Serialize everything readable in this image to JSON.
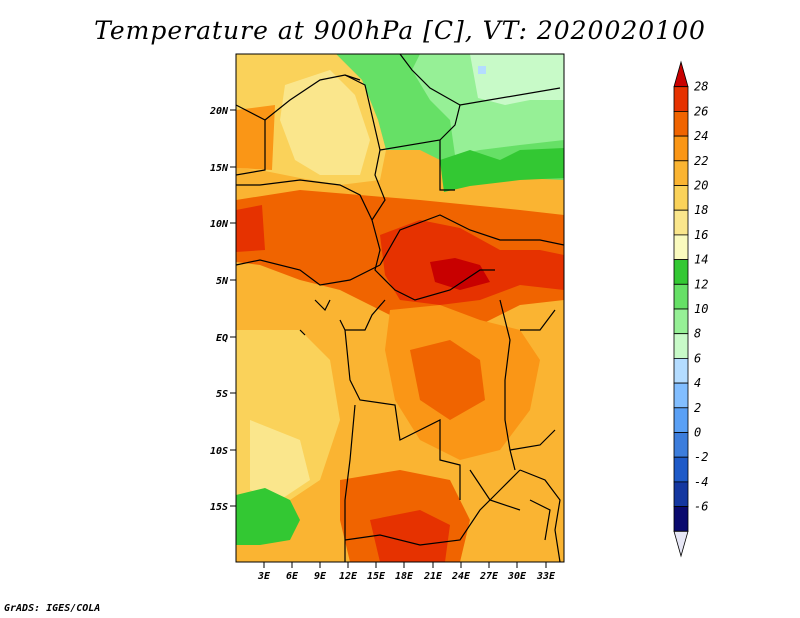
{
  "title": "Temperature at 900hPa [C], VT: 2020020100",
  "credit": "GrADS: IGES/COLA",
  "map": {
    "lat_axis_labels": [
      "20N",
      "15N",
      "10N",
      "5N",
      "EQ",
      "5S",
      "10S",
      "15S"
    ],
    "lon_axis_labels": [
      "3E",
      "6E",
      "9E",
      "12E",
      "15E",
      "18E",
      "21E",
      "24E",
      "27E",
      "30E",
      "33E"
    ]
  },
  "colorbar": {
    "levels": [
      "28",
      "26",
      "24",
      "22",
      "20",
      "18",
      "16",
      "14",
      "12",
      "10",
      "8",
      "6",
      "4",
      "2",
      "0",
      "-2",
      "-4",
      "-6"
    ],
    "colors": [
      "#c80000",
      "#e63200",
      "#f06400",
      "#fa9616",
      "#fab432",
      "#fad25a",
      "#fae68c",
      "#fafabe",
      "#33c833",
      "#66e066",
      "#96f096",
      "#c8fac8",
      "#b4dcff",
      "#82beff",
      "#5aa0f5",
      "#3c7ddc",
      "#1e5ac8",
      "#1437a0",
      "#0a0a6e",
      "#e6e6f5"
    ]
  },
  "colors": {
    "hot": "#c80000",
    "warm": "#f06400",
    "mild": "#fad25a",
    "cool": "#66e066"
  }
}
